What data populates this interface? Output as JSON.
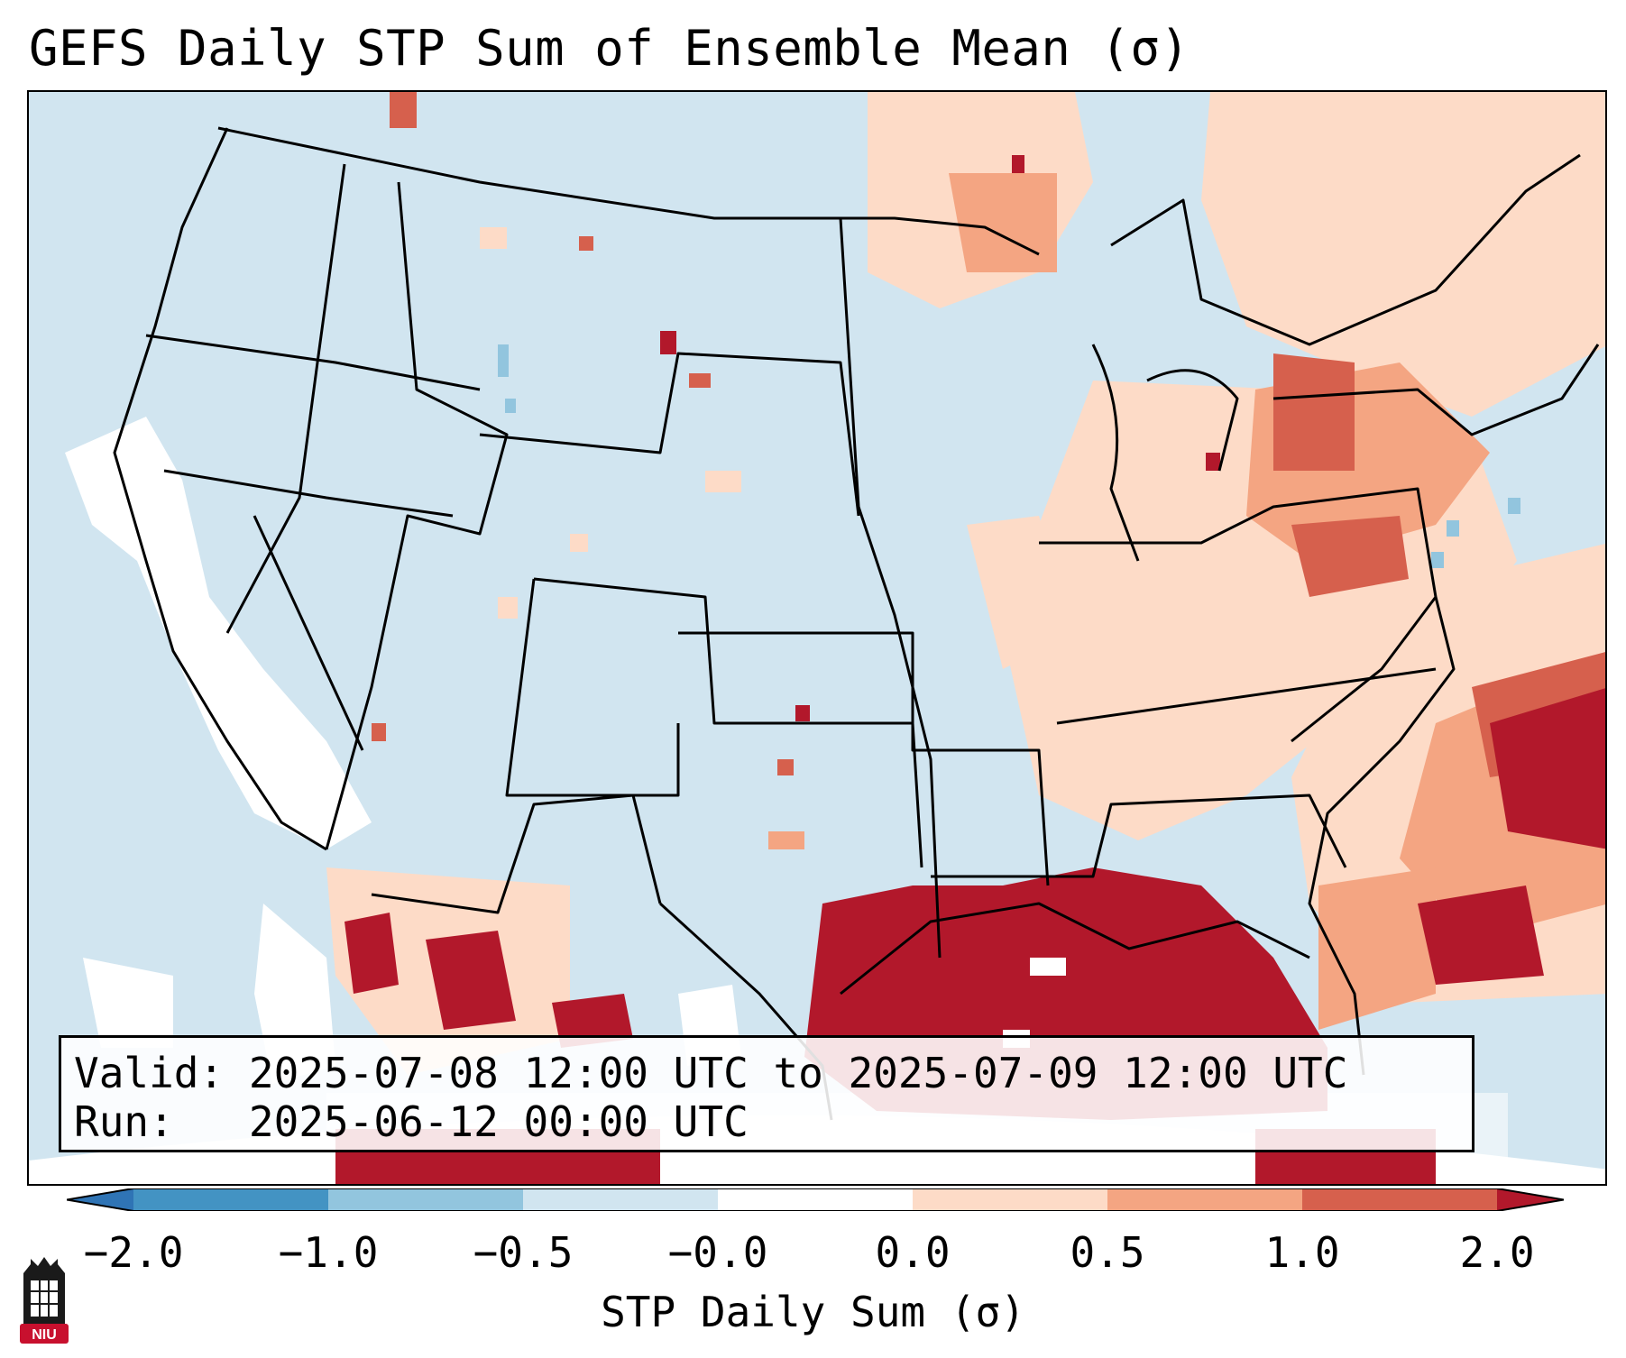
{
  "title": "GEFS Daily STP Sum of Ensemble Mean (σ)",
  "info": {
    "valid_label": "Valid:",
    "valid_value": "2025-07-08 12:00 UTC to 2025-07-09 12:00 UTC",
    "run_label": "Run:",
    "run_value": "2025-06-12 00:00 UTC"
  },
  "colorbar": {
    "label": "STP Daily Sum (σ)",
    "ticks": [
      "−2.0",
      "−1.0",
      "−0.5",
      "−0.0",
      "0.0",
      "0.5",
      "1.0",
      "2.0"
    ],
    "colors": {
      "below_min": "#2f74b5",
      "neg_2_to_1": "#4393c3",
      "neg_1_to_05": "#92c5de",
      "neg_05_to_0": "#d1e5f0",
      "zero_band": "#ffffff",
      "pos_0_to_05": "#fddbc7",
      "pos_05_to_1": "#f4a582",
      "pos_1_to_2": "#d6604d",
      "above_max": "#b2182b"
    }
  },
  "map": {
    "background_color": "#d1e5f0",
    "border_color": "#000000"
  },
  "logo": {
    "text": "NIU",
    "icon": "niu-castle-logo",
    "color": "#c8102e"
  }
}
